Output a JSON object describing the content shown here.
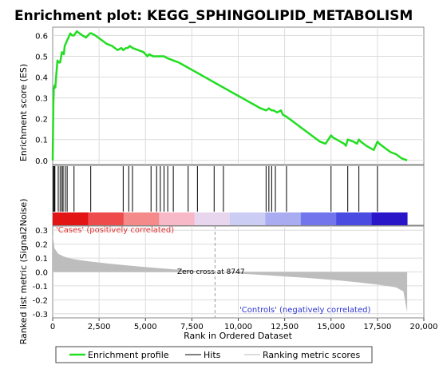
{
  "chart_data": {
    "type": "line",
    "title": "Enrichment plot: KEGG_SPHINGOLIPID_METABOLISM",
    "xlabel": "Rank in Ordered Dataset",
    "xlim": [
      0,
      20000
    ],
    "x_ticks": [
      "0",
      "2,500",
      "5,000",
      "7,500",
      "10,000",
      "12,500",
      "15,000",
      "17,500",
      "20,000"
    ],
    "x_tick_values": [
      0,
      2500,
      5000,
      7500,
      10000,
      12500,
      15000,
      17500,
      20000
    ],
    "panels": {
      "enrichment": {
        "ylabel": "Enrichment score (ES)",
        "ylim": [
          -0.02,
          0.64
        ],
        "y_ticks": [
          "0.0",
          "0.1",
          "0.2",
          "0.3",
          "0.4",
          "0.5",
          "0.6"
        ],
        "y_tick_values": [
          0,
          0.1,
          0.2,
          0.3,
          0.4,
          0.5,
          0.6
        ],
        "series": [
          {
            "name": "Enrichment profile",
            "color": "#22dd22",
            "x": [
              0,
              40,
              60,
              100,
              140,
              200,
              260,
              340,
              400,
              500,
              600,
              650,
              750,
              850,
              950,
              1050,
              1150,
              1300,
              1450,
              1600,
              1800,
              2000,
              2100,
              2300,
              2600,
              2900,
              3200,
              3500,
              3700,
              3800,
              3950,
              4050,
              4150,
              4300,
              4600,
              4900,
              5100,
              5200,
              5400,
              5600,
              5800,
              6000,
              6200,
              6500,
              6800,
              7200,
              7600,
              8000,
              8400,
              8800,
              9200,
              9600,
              10000,
              10400,
              10800,
              11200,
              11500,
              11650,
              11800,
              11900,
              12100,
              12300,
              12400,
              12600,
              12900,
              13200,
              13500,
              13800,
              14100,
              14400,
              14700,
              15000,
              15100,
              15300,
              15500,
              15700,
              15800,
              15900,
              16200,
              16400,
              16500,
              16600,
              16900,
              17100,
              17300,
              17500,
              17600,
              17900,
              18200,
              18500,
              18800,
              19100
            ],
            "y": [
              0.0,
              0.28,
              0.34,
              0.36,
              0.35,
              0.42,
              0.48,
              0.47,
              0.47,
              0.52,
              0.51,
              0.55,
              0.57,
              0.59,
              0.61,
              0.6,
              0.6,
              0.62,
              0.61,
              0.6,
              0.59,
              0.61,
              0.61,
              0.6,
              0.58,
              0.56,
              0.55,
              0.53,
              0.54,
              0.53,
              0.54,
              0.54,
              0.55,
              0.54,
              0.53,
              0.52,
              0.5,
              0.51,
              0.5,
              0.5,
              0.5,
              0.5,
              0.49,
              0.48,
              0.47,
              0.45,
              0.43,
              0.41,
              0.39,
              0.37,
              0.35,
              0.33,
              0.31,
              0.29,
              0.27,
              0.25,
              0.24,
              0.25,
              0.24,
              0.24,
              0.23,
              0.24,
              0.22,
              0.21,
              0.19,
              0.17,
              0.15,
              0.13,
              0.11,
              0.09,
              0.08,
              0.12,
              0.11,
              0.1,
              0.09,
              0.08,
              0.07,
              0.1,
              0.09,
              0.08,
              0.1,
              0.09,
              0.07,
              0.06,
              0.05,
              0.09,
              0.08,
              0.06,
              0.04,
              0.03,
              0.01,
              0.0
            ]
          }
        ]
      },
      "hits": {
        "legend_label": "Hits",
        "positions": [
          40,
          80,
          120,
          300,
          400,
          500,
          560,
          680,
          780,
          1150,
          2050,
          3800,
          4100,
          4300,
          5300,
          5600,
          5800,
          6000,
          6200,
          6500,
          7300,
          7800,
          8700,
          9200,
          11500,
          11650,
          11800,
          12000,
          12600,
          15000,
          15900,
          16500,
          17500
        ]
      },
      "ranked_metric": {
        "ylabel": "Ranked list metric (Signal2Noise)",
        "legend_label": "Ranking metric scores",
        "ylim": [
          -0.33,
          0.33
        ],
        "y_ticks": [
          "0.3",
          "0.2",
          "0.1",
          "0.0",
          "-0.1",
          "-0.2",
          "-0.3"
        ],
        "y_tick_values": [
          0.3,
          0.2,
          0.1,
          0.0,
          -0.1,
          -0.2,
          -0.3
        ],
        "x": [
          0,
          100,
          300,
          600,
          1000,
          1500,
          2000,
          3000,
          4000,
          5000,
          6000,
          7000,
          8000,
          8747,
          9500,
          10500,
          11500,
          12500,
          13500,
          14500,
          15500,
          16500,
          17500,
          18500,
          18900,
          19100
        ],
        "y": [
          0.27,
          0.17,
          0.13,
          0.11,
          0.095,
          0.085,
          0.075,
          0.06,
          0.047,
          0.035,
          0.024,
          0.014,
          0.006,
          0.0,
          -0.007,
          -0.015,
          -0.023,
          -0.032,
          -0.041,
          -0.051,
          -0.062,
          -0.075,
          -0.09,
          -0.11,
          -0.14,
          -0.29
        ],
        "zero_cross": 8747,
        "zero_cross_label": "Zero cross at 8747",
        "positive_label": "'Cases' (positively correlated)",
        "negative_label": "'Controls' (negatively correlated)"
      }
    },
    "legend": {
      "placement": "bottom",
      "entries": [
        {
          "label": "Enrichment profile",
          "color": "#22dd22"
        },
        {
          "label": "Hits",
          "color": "#000000"
        },
        {
          "label": "Ranking metric scores",
          "color": "#bbbbbb"
        }
      ]
    }
  },
  "colors": {
    "grid": "#dcdcdc",
    "metric_fill": "#bdbdbd",
    "positive_text": "#e23030",
    "negative_text": "#2a33d6",
    "heatmap": [
      "#e31414",
      "#ee4c4c",
      "#f58a8a",
      "#f7b9c8",
      "#e8d6ee",
      "#cccdf4",
      "#a9acf1",
      "#7275ec",
      "#4a4be0",
      "#2a16c9"
    ]
  }
}
